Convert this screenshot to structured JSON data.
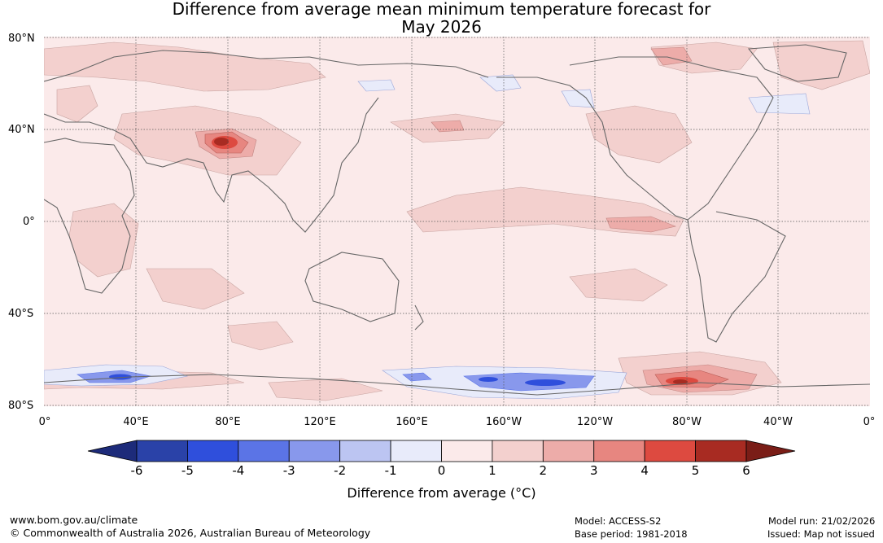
{
  "title": {
    "line1": "Difference from average mean minimum temperature forecast for",
    "line2": "May 2026"
  },
  "map": {
    "latitude_labels": [
      "80°N",
      "40°N",
      "0°",
      "40°S",
      "80°S"
    ],
    "longitude_labels": [
      "0°",
      "40°E",
      "80°E",
      "120°E",
      "160°E",
      "160°W",
      "120°W",
      "80°W",
      "40°W",
      "0°"
    ],
    "features": [
      {
        "name": "tibetan-plateau-warm-anomaly",
        "value_c": 5.5
      },
      {
        "name": "antarctic-cold-anomaly-40e",
        "value_c": -4.5
      },
      {
        "name": "antarctic-cold-anomaly-160w",
        "value_c": -4
      },
      {
        "name": "antarctic-warm-anomaly-80w",
        "value_c": 5.2
      }
    ]
  },
  "colorbar": {
    "ticks": [
      "-6",
      "-5",
      "-4",
      "-3",
      "-2",
      "-1",
      "0",
      "1",
      "2",
      "3",
      "4",
      "5",
      "6"
    ],
    "bins": [
      {
        "range": "-6 to -5",
        "color": "#2a42a8"
      },
      {
        "range": "-5 to -4",
        "color": "#2f4fdc"
      },
      {
        "range": "-4 to -3",
        "color": "#5b74e6"
      },
      {
        "range": "-3 to -2",
        "color": "#8898ec"
      },
      {
        "range": "-2 to -1",
        "color": "#bcc5f2"
      },
      {
        "range": "-1 to 0",
        "color": "#e8ebfa"
      },
      {
        "range": "0 to 1",
        "color": "#fbeaea"
      },
      {
        "range": "1 to 2",
        "color": "#f3d0ce"
      },
      {
        "range": "2 to 3",
        "color": "#edaca9"
      },
      {
        "range": "3 to 4",
        "color": "#e78680"
      },
      {
        "range": "4 to 5",
        "color": "#dd4a40"
      },
      {
        "range": "5 to 6",
        "color": "#a82b22"
      }
    ],
    "under_color": "#1d2b7a",
    "over_color": "#7a1d17",
    "label": "Difference from average (°C)"
  },
  "footer": {
    "website": "www.bom.gov.au/climate",
    "copyright": "© Commonwealth of Australia 2026, Australian Bureau of Meteorology",
    "model": "Model: ACCESS-S2",
    "base_period": "Base period: 1981-2018",
    "model_run": "Model run: 21/02/2026",
    "issued": "Issued: Map not issued"
  }
}
